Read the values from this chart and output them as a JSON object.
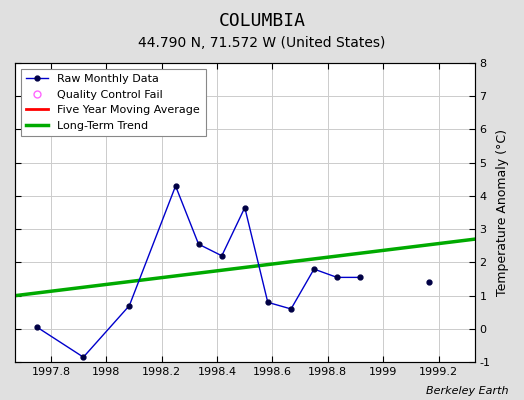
{
  "title": "COLUMBIA",
  "subtitle": "44.790 N, 71.572 W (United States)",
  "credit": "Berkeley Earth",
  "ylabel": "Temperature Anomaly (°C)",
  "xlim": [
    1997.67,
    1999.33
  ],
  "ylim": [
    -1,
    8
  ],
  "yticks": [
    -1,
    0,
    1,
    2,
    3,
    4,
    5,
    6,
    7,
    8
  ],
  "xticks": [
    1997.8,
    1998.0,
    1998.2,
    1998.4,
    1998.6,
    1998.8,
    1999.0,
    1999.2
  ],
  "xticklabels": [
    "1997.8",
    "1998",
    "1998.2",
    "1998.4",
    "1998.6",
    "1998.8",
    "1999",
    "1999.2"
  ],
  "raw_connected_x": [
    1997.75,
    1997.917,
    1998.083,
    1998.25,
    1998.333,
    1998.417,
    1998.5,
    1998.583,
    1998.667,
    1998.75,
    1998.833,
    1998.917
  ],
  "raw_connected_y": [
    0.05,
    -0.85,
    0.7,
    4.3,
    2.55,
    2.2,
    3.65,
    0.8,
    0.6,
    1.8,
    1.55,
    1.55
  ],
  "isolated_x": [
    1999.167
  ],
  "isolated_y": [
    1.4
  ],
  "raw_line_color": "#0000cc",
  "raw_marker_color": "#000044",
  "raw_marker_size": 3.5,
  "trend_x": [
    1997.67,
    1999.33
  ],
  "trend_y": [
    1.0,
    2.7
  ],
  "trend_color": "#00aa00",
  "trend_linewidth": 2.5,
  "mavg_color": "#ff0000",
  "mavg_linewidth": 2,
  "qc_fail_color": "#ff66ff",
  "background_color": "#e0e0e0",
  "plot_bg_color": "#ffffff",
  "grid_color": "#cccccc",
  "title_fontsize": 13,
  "subtitle_fontsize": 10,
  "credit_fontsize": 8,
  "legend_fontsize": 8,
  "axis_fontsize": 8,
  "ylabel_fontsize": 9
}
